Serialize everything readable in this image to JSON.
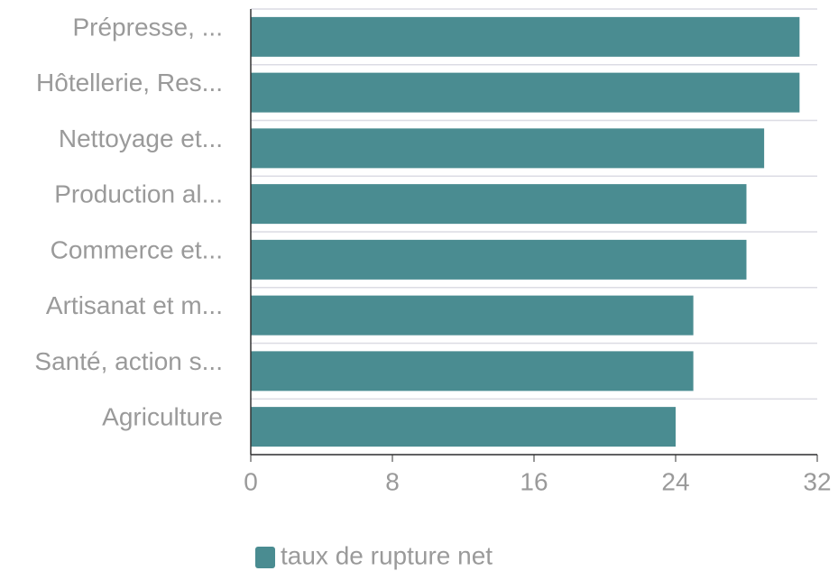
{
  "chart_data": {
    "type": "barh",
    "categories": [
      "Prépresse, ...",
      "Hôtellerie, Res...",
      "Nettoyage et...",
      "Production al...",
      "Commerce et...",
      "Artisanat et m...",
      "Santé, action s...",
      "Agriculture"
    ],
    "series": [
      {
        "name": "taux de rupture net",
        "color": "#4a8c91",
        "values": [
          31,
          31,
          29,
          28,
          28,
          25,
          25,
          24
        ]
      }
    ],
    "xlim": [
      0,
      32
    ],
    "xticks": [
      0,
      8,
      16,
      24,
      32
    ],
    "legend": "bottom"
  }
}
